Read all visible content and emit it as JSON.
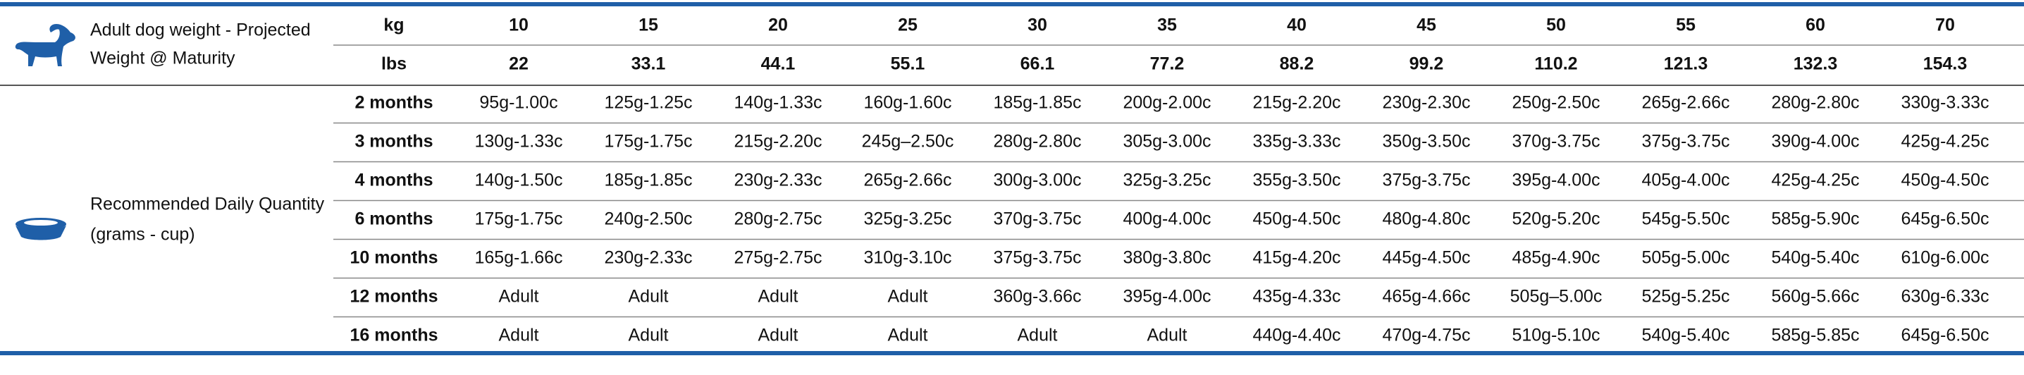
{
  "header": {
    "label_lines": [
      "Adult dog weight - Projected",
      "Weight @ Maturity"
    ],
    "kg_label": "kg",
    "lbs_label": "lbs",
    "kg": [
      "10",
      "15",
      "20",
      "25",
      "30",
      "35",
      "40",
      "45",
      "50",
      "55",
      "60",
      "70"
    ],
    "lbs": [
      "22",
      "33.1",
      "44.1",
      "55.1",
      "66.1",
      "77.2",
      "88.2",
      "99.2",
      "110.2",
      "121.3",
      "132.3",
      "154.3"
    ]
  },
  "quantity": {
    "label_lines": [
      "Recommended Daily Quantity",
      "(grams - cup)"
    ]
  },
  "table": {
    "rows": [
      {
        "age": "2 months",
        "cells": [
          "95g-1.00c",
          "125g-1.25c",
          "140g-1.33c",
          "160g-1.60c",
          "185g-1.85c",
          "200g-2.00c",
          "215g-2.20c",
          "230g-2.30c",
          "250g-2.50c",
          "265g-2.66c",
          "280g-2.80c",
          "330g-3.33c"
        ]
      },
      {
        "age": "3 months",
        "cells": [
          "130g-1.33c",
          "175g-1.75c",
          "215g-2.20c",
          "245g–2.50c",
          "280g-2.80c",
          "305g-3.00c",
          "335g-3.33c",
          "350g-3.50c",
          "370g-3.75c",
          "375g-3.75c",
          "390g-4.00c",
          "425g-4.25c"
        ]
      },
      {
        "age": "4 months",
        "cells": [
          "140g-1.50c",
          "185g-1.85c",
          "230g-2.33c",
          "265g-2.66c",
          "300g-3.00c",
          "325g-3.25c",
          "355g-3.50c",
          "375g-3.75c",
          "395g-4.00c",
          "405g-4.00c",
          "425g-4.25c",
          "450g-4.50c"
        ]
      },
      {
        "age": "6 months",
        "cells": [
          "175g-1.75c",
          "240g-2.50c",
          "280g-2.75c",
          "325g-3.25c",
          "370g-3.75c",
          "400g-4.00c",
          "450g-4.50c",
          "480g-4.80c",
          "520g-5.20c",
          "545g-5.50c",
          "585g-5.90c",
          "645g-6.50c"
        ]
      },
      {
        "age": "10 months",
        "cells": [
          "165g-1.66c",
          "230g-2.33c",
          "275g-2.75c",
          "310g-3.10c",
          "375g-3.75c",
          "380g-3.80c",
          "415g-4.20c",
          "445g-4.50c",
          "485g-4.90c",
          "505g-5.00c",
          "540g-5.40c",
          "610g-6.00c"
        ]
      },
      {
        "age": "12 months",
        "cells": [
          "Adult",
          "Adult",
          "Adult",
          "Adult",
          "360g-3.66c",
          "395g-4.00c",
          "435g-4.33c",
          "465g-4.66c",
          "505g–5.00c",
          "525g-5.25c",
          "560g-5.66c",
          "630g-6.33c"
        ]
      },
      {
        "age": "16 months",
        "cells": [
          "Adult",
          "Adult",
          "Adult",
          "Adult",
          "Adult",
          "Adult",
          "440g-4.40c",
          "470g-4.75c",
          "510g-5.10c",
          "540g-5.40c",
          "585g-5.85c",
          "645g-6.50c"
        ]
      }
    ]
  }
}
